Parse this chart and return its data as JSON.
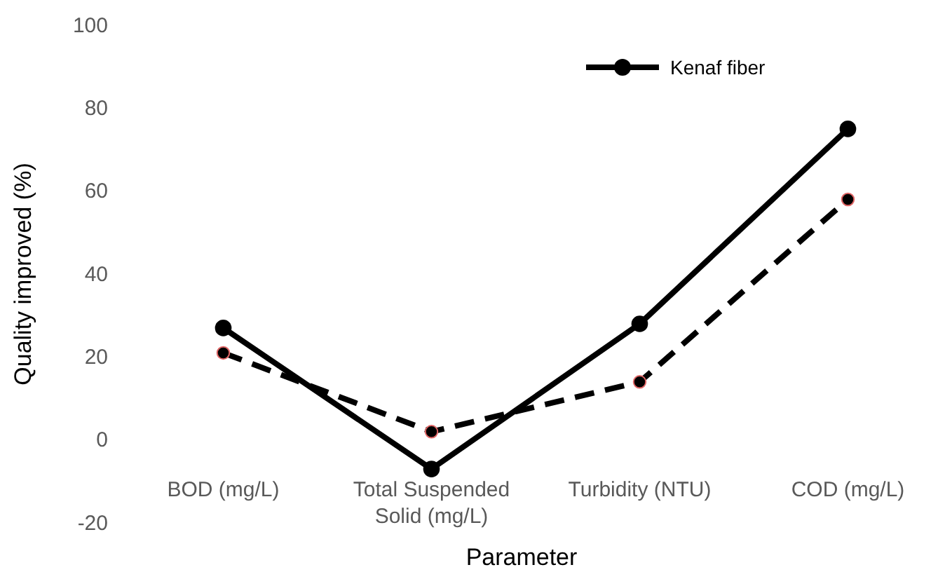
{
  "chart_data": {
    "type": "line",
    "xlabel": "Parameter",
    "ylabel": "Quality improved (%)",
    "categories": [
      "BOD (mg/L)",
      "Total Suspended Solid (mg/L)",
      "Turbidity (NTU)",
      "COD (mg/L)"
    ],
    "series": [
      {
        "name": "Kenaf fiber",
        "color": "#000000",
        "line_style": "solid",
        "values": [
          27,
          -7,
          28,
          75
        ]
      },
      {
        "color": "#000000",
        "line_style": "dashed",
        "values": [
          21,
          2,
          14,
          58
        ]
      }
    ],
    "ylim": [
      -20,
      100
    ],
    "yticks": [
      -20,
      0,
      20,
      40,
      60,
      80,
      100
    ],
    "grid": false,
    "legend": "top right",
    "marker": "circle"
  }
}
